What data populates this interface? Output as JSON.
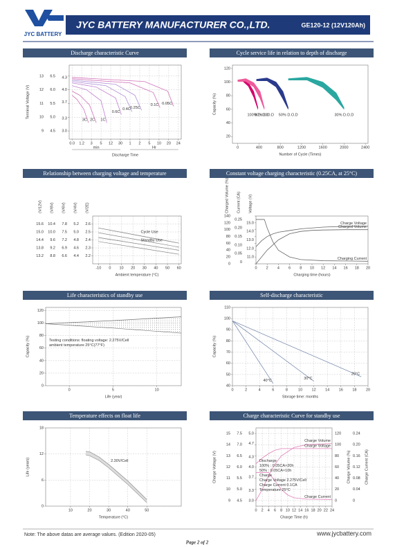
{
  "header": {
    "logo": "JYC BATTERY",
    "company": "JYC BATTERY MANUFACTURER CO.,LTD.",
    "model": "GE120-12 (12V120Ah)"
  },
  "chart_data": [
    {
      "type": "line",
      "title": "Discharge characteristic Curve",
      "grid": true,
      "axes": [
        {
          "label": "Terminal Voltage (V)",
          "lim": [
            8.4,
            13.8
          ],
          "ticks": [
            13,
            12,
            11,
            10,
            9
          ]
        },
        {
          "lim": [
            4.2,
            6.9
          ],
          "ticks": [
            6.5,
            {
              "value": 6,
              "label": "6.0"
            },
            5.5,
            {
              "value": 5,
              "label": "5.0"
            },
            4.5
          ]
        },
        {
          "lim": [
            2.8,
            4.6
          ],
          "ticks": [
            4.3,
            {
              "value": 4,
              "label": "4.0"
            },
            3.7,
            3.3,
            {
              "value": 3,
              "label": "3.0"
            }
          ]
        }
      ],
      "xlim": [
        -0.3,
        11.3
      ],
      "xticks": [
        {
          "value": 0,
          "label": "0.0"
        },
        {
          "value": 1,
          "label": "1.2"
        },
        {
          "value": 2,
          "label": "3"
        },
        {
          "value": 3,
          "label": "5"
        },
        {
          "value": 4,
          "label": "12"
        },
        {
          "value": 5,
          "label": "30"
        },
        {
          "value": 6,
          "label": "1"
        },
        {
          "value": 7,
          "label": "2"
        },
        {
          "value": 8,
          "label": "5"
        },
        {
          "value": 9,
          "label": "10"
        },
        {
          "value": 10,
          "label": "20"
        },
        {
          "value": 11,
          "label": "24"
        }
      ],
      "x_groups": [
        {
          "label": "min",
          "from": 0,
          "to": 5
        },
        {
          "label": "Hr",
          "from": 6,
          "to": 11
        }
      ],
      "x_label": "Discharge Time",
      "series": [
        {
          "name": "3C",
          "color": "#d070b8",
          "x": [
            0,
            0.5,
            1.2,
            1.7
          ],
          "values": [
            11.6,
            11.3,
            10.6,
            9.6
          ]
        },
        {
          "name": "2C",
          "color": "#d070b8",
          "x": [
            0,
            0.8,
            1.8,
            2.5
          ],
          "values": [
            11.9,
            11.6,
            10.9,
            9.6
          ]
        },
        {
          "name": "1C",
          "color": "#c080d0",
          "x": [
            0,
            1.5,
            3,
            3.6
          ],
          "values": [
            12.3,
            12.0,
            11.2,
            9.6
          ]
        },
        {
          "name": "0.6C",
          "color": "#c080d0",
          "x": [
            0,
            2.5,
            4.5,
            5.1
          ],
          "values": [
            12.5,
            12.2,
            11.4,
            10.2
          ]
        },
        {
          "name": "0.4C",
          "color": "#b090d8",
          "x": [
            0,
            3.5,
            5.5,
            6.2
          ],
          "values": [
            12.6,
            12.3,
            11.5,
            10.4
          ]
        },
        {
          "name": "0.25C",
          "color": "#b090d8",
          "x": [
            0,
            4.5,
            6.5,
            7.2
          ],
          "values": [
            12.7,
            12.4,
            11.6,
            10.5
          ]
        },
        {
          "name": "0.1C",
          "color": "#d070b8",
          "x": [
            0,
            6,
            8.4,
            9.1
          ],
          "values": [
            12.8,
            12.5,
            11.8,
            10.7
          ]
        },
        {
          "name": "0.05C",
          "color": "#d070b8",
          "x": [
            0,
            7.5,
            9.9,
            10.5
          ],
          "values": [
            12.9,
            12.6,
            11.9,
            10.8
          ]
        }
      ]
    },
    {
      "type": "line",
      "title": "Cycle service life in relation to depth of discharge",
      "grid": false,
      "axes": [
        {
          "label": "Capacity (%)",
          "lim": [
            10,
            125
          ],
          "ticks": [
            20,
            40,
            60,
            80,
            100,
            120
          ]
        }
      ],
      "xlim": [
        -100,
        2450
      ],
      "xticks": [
        0,
        400,
        800,
        1200,
        1600,
        2000,
        2400
      ],
      "x_label": "Number of Cycle (Times)",
      "series": [
        {
          "name": "100% D.O.D",
          "color": "#d4006c",
          "x": [
            0,
            100,
            200,
            300,
            380
          ],
          "values": [
            103,
            104,
            99,
            86,
            62
          ],
          "lower": [
            101,
            101,
            94,
            78,
            60
          ],
          "fill": "#d4006c"
        },
        {
          "name": "80% D.O.D",
          "color": "#ee5a9b",
          "x": [
            0,
            150,
            300,
            420,
            500
          ],
          "values": [
            103,
            105,
            99,
            86,
            62
          ],
          "lower": [
            101,
            101,
            93,
            76,
            60
          ],
          "fill": "#ee5a9b"
        },
        {
          "name": "50% D.O.D",
          "color": "#2a3a8c",
          "x": [
            350,
            550,
            720,
            850,
            950
          ],
          "values": [
            104,
            106,
            100,
            86,
            62
          ],
          "lower": [
            102,
            102,
            93,
            75,
            60
          ],
          "fill": "#2a3a8c"
        },
        {
          "name": "30% D.O.D",
          "color": "#2aa7a0",
          "x": [
            950,
            1300,
            1600,
            1850,
            2000
          ],
          "values": [
            105,
            107,
            100,
            84,
            62
          ],
          "lower": [
            103,
            103,
            92,
            74,
            60
          ],
          "fill": "#2aa7a0"
        }
      ]
    },
    {
      "type": "line",
      "title": "Relationship between charging voltage and temperature",
      "grid": true,
      "axis_labels_top": true,
      "axes": [
        {
          "label": "(V/12V)",
          "lim": [
            12.6,
            16.2
          ],
          "ticks": [
            15.6,
            {
              "value": 15,
              "label": "15.0"
            },
            14.4,
            13.8,
            13.2
          ]
        },
        {
          "label": "(V/8V)",
          "lim": [
            8.4,
            10.8
          ],
          "ticks": [
            10.4,
            {
              "value": 10,
              "label": "10.0"
            },
            9.6,
            9.2,
            8.8
          ]
        },
        {
          "label": "(V/6V)",
          "lim": [
            6.3,
            8.1
          ],
          "ticks": [
            7.8,
            7.5,
            7.2,
            6.9,
            6.6
          ]
        },
        {
          "label": "(V/4V)",
          "lim": [
            4.2,
            5.4
          ],
          "ticks": [
            5.2,
            {
              "value": 5,
              "label": "5.0"
            },
            4.8,
            4.6,
            4.4
          ]
        },
        {
          "label": "(V/2E)",
          "lim": [
            2.1,
            2.7
          ],
          "ticks": [
            2.6,
            2.5,
            2.4,
            2.3,
            2.2
          ]
        }
      ],
      "xlim": [
        -15,
        62
      ],
      "xticks": [
        -10,
        0,
        10,
        20,
        30,
        40,
        50,
        60
      ],
      "x_label": "Ambient temperature (°C)",
      "series": [
        {
          "name": "Cycle Use",
          "color": "#888888",
          "axis": 4,
          "x": [
            -10,
            25,
            60
          ],
          "values": [
            2.55,
            2.455,
            2.36
          ],
          "lower": [
            2.49,
            2.4,
            2.31
          ]
        },
        {
          "name": "Standby Use",
          "color": "#888888",
          "axis": 4,
          "x": [
            -10,
            25,
            60
          ],
          "values": [
            2.43,
            2.35,
            2.27
          ],
          "lower": [
            2.38,
            2.3,
            2.22
          ]
        }
      ]
    },
    {
      "type": "line",
      "title": "Constant voltage charging characteristic (0.25CA, at 25°C)",
      "grid": false,
      "axis_labels_top": true,
      "axes": [
        {
          "label": "Charged Volume (%)",
          "lim": [
            0,
            140
          ],
          "ticks": [
            0,
            20,
            40,
            60,
            80,
            100,
            120,
            140
          ]
        },
        {
          "label": "Current (CA)",
          "lim": [
            -0.01,
            0.27
          ],
          "ticks": [
            0,
            0.05,
            {
              "value": 0.1,
              "label": "0.10"
            },
            0.15,
            {
              "value": 0.2,
              "label": "0.20"
            },
            0.25
          ]
        },
        {
          "label": "Voltage (V)",
          "lim": [
            10.2,
            15.8
          ],
          "ticks": [
            {
              "value": 11,
              "label": "11.0"
            },
            {
              "value": 12,
              "label": "12.0"
            },
            {
              "value": 13,
              "label": "13.0"
            },
            {
              "value": 14,
              "label": "14.0"
            },
            {
              "value": 15,
              "label": "15.0"
            }
          ]
        }
      ],
      "xlim": [
        0,
        20
      ],
      "xticks": [
        0,
        2,
        4,
        6,
        8,
        10,
        12,
        14,
        16,
        18,
        20
      ],
      "x_label": "Charging time (hours)",
      "series": [
        {
          "name": "Charged Volume",
          "color": "#666666",
          "axis": 0,
          "x": [
            0,
            2,
            4,
            6,
            8,
            10,
            12,
            16,
            20
          ],
          "values": [
            0,
            40,
            70,
            88,
            95,
            98,
            99,
            100,
            100
          ]
        },
        {
          "name": "Charge Voltage",
          "color": "#666666",
          "axis": 2,
          "x": [
            0,
            1,
            2,
            3,
            4,
            6,
            8,
            12,
            16,
            20
          ],
          "values": [
            12.2,
            12.9,
            13.4,
            13.7,
            13.9,
            14.1,
            14.3,
            14.5,
            14.6,
            14.6
          ]
        },
        {
          "name": "Charging Current",
          "color": "#666666",
          "axis": 1,
          "x": [
            0,
            1.5,
            2,
            3,
            4,
            6,
            8,
            12,
            20
          ],
          "values": [
            0.25,
            0.25,
            0.2,
            0.12,
            0.07,
            0.03,
            0.015,
            0.008,
            0.005
          ]
        }
      ]
    },
    {
      "type": "line",
      "title": "Life characteristics of standby use",
      "grid": true,
      "axes": [
        {
          "label": "Capacity (%)",
          "lim": [
            0,
            125
          ],
          "ticks": [
            0,
            20,
            40,
            60,
            80,
            100,
            120
          ]
        }
      ],
      "xlim": [
        -2.7,
        12.8
      ],
      "xticks": [
        0,
        5,
        10
      ],
      "x_label": "Life (year)",
      "notes": [
        "Testing conditions: floating voltage: 2.275V/Cell",
        "ambient temperature 25°C(77°F)"
      ],
      "series": [
        {
          "color": "#777777",
          "x": [
            -2.7,
            5,
            12.8
          ],
          "values": [
            99,
            104,
            110
          ],
          "lower": [
            99,
            92,
            84
          ],
          "fill": "dots"
        }
      ]
    },
    {
      "type": "line",
      "title": "Self-discharge characteristic",
      "grid": true,
      "axes": [
        {
          "label": "Capacity (%)",
          "lim": [
            40,
            110
          ],
          "ticks": [
            40,
            50,
            60,
            70,
            80,
            90,
            100,
            110
          ]
        }
      ],
      "xlim": [
        0,
        20
      ],
      "xticks": [
        0,
        2,
        4,
        6,
        8,
        10,
        12,
        14,
        16,
        18,
        20
      ],
      "x_label": "Storage time: months",
      "series": [
        {
          "name": "40°C",
          "color": "#7f8fb0",
          "x": [
            0,
            6
          ],
          "values": [
            98,
            42
          ]
        },
        {
          "name": "30°C",
          "color": "#7f8fb0",
          "x": [
            0,
            12
          ],
          "values": [
            98,
            44
          ]
        },
        {
          "name": "20°C",
          "color": "#7f8fb0",
          "x": [
            0,
            19
          ],
          "values": [
            98,
            48
          ]
        }
      ]
    },
    {
      "type": "line",
      "title": "Temperature effects on float life",
      "grid": true,
      "axes": [
        {
          "label": "Life (years)",
          "lim": [
            0,
            18
          ],
          "ticks": [
            0,
            6,
            12,
            18
          ]
        }
      ],
      "xlim": [
        -3,
        68
      ],
      "xticks": [
        10,
        20,
        30,
        40,
        50
      ],
      "x_label": "Temperature (°C)",
      "series": [
        {
          "name": "2.30V/Cell",
          "color": "#999999",
          "x": [
            18,
            20,
            25,
            30,
            40,
            50
          ],
          "values": [
            12.6,
            12.5,
            11.3,
            9.6,
            5.8,
            1.5
          ],
          "lower": [
            11.8,
            11.6,
            10.5,
            8.8,
            5,
            0.8
          ],
          "fill": "#dddddd"
        }
      ]
    },
    {
      "type": "line",
      "title": "Charge characteristic Curve for standby use",
      "grid": true,
      "axes": [
        {
          "label": "Charge Voltage (V)",
          "lim": [
            8.5,
            15.5
          ],
          "ticks": [
            15,
            14,
            13,
            12,
            11,
            10,
            9
          ]
        },
        {
          "lim": [
            4.25,
            7.75
          ],
          "ticks": [
            7.5,
            {
              "value": 7,
              "label": "7.0"
            },
            6.5,
            {
              "value": 6,
              "label": "6.0"
            },
            5.5,
            {
              "value": 5,
              "label": "5.0"
            },
            4.5
          ]
        },
        {
          "lim": [
            2.833,
            5.167
          ],
          "ticks": [
            {
              "value": 5,
              "label": "5.0"
            },
            4.7,
            4.3,
            {
              "value": 4,
              "label": "4.0"
            },
            3.7,
            3.3,
            {
              "value": 3,
              "label": "3.0"
            }
          ]
        },
        {
          "label": "Charge Volume (%)",
          "side": "right",
          "lim": [
            -10,
            130
          ],
          "ticks": [
            120,
            100,
            80,
            60,
            40,
            20,
            0
          ]
        },
        {
          "label": "Charge Current (CA)",
          "side": "right",
          "lim": [
            -0.02,
            0.26
          ],
          "ticks": [
            0.24,
            {
              "value": 0.2,
              "label": "0.20"
            },
            0.16,
            0.12,
            0.08,
            0.04,
            0
          ]
        }
      ],
      "xlim": [
        0,
        24
      ],
      "xticks": [
        0,
        2,
        4,
        6,
        8,
        10,
        12,
        14,
        16,
        18,
        20,
        22,
        24
      ],
      "x_label": "Charge Time (h)",
      "notes": [
        "Discharge",
        "100% : 0.05CA×20h",
        "50% : 0.05CA×10h",
        "Charge",
        "Charge Voltage 2.275V/Cell",
        "Charge Current 0.1CA",
        "Temperature 25°C"
      ],
      "series": [
        {
          "name": "Charge Volume",
          "color": "#e080b8",
          "axis": 3,
          "x": [
            0,
            2,
            4,
            6,
            8,
            12,
            16,
            24
          ],
          "values": [
            0,
            20,
            45,
            65,
            80,
            95,
            100,
            102
          ]
        },
        {
          "name": "Charge Voltage",
          "color": "#e080b8",
          "axis": 0,
          "x": [
            0,
            2,
            4,
            6,
            8,
            12,
            24
          ],
          "values": [
            12.3,
            12.8,
            13.2,
            13.5,
            13.65,
            13.65,
            13.65
          ]
        },
        {
          "name": "Charge Current",
          "color": "#e080b8",
          "axis": 4,
          "x": [
            0,
            4,
            6,
            8,
            10,
            12,
            16,
            24
          ],
          "values": [
            0.1,
            0.1,
            0.07,
            0.04,
            0.02,
            0.01,
            0.005,
            0.004
          ]
        }
      ]
    }
  ],
  "footer": {
    "note": "Note: The above datas are average values. (Edition 2020-05)",
    "website": "www.jycbattery.com",
    "page": "Page 2 of 2"
  }
}
